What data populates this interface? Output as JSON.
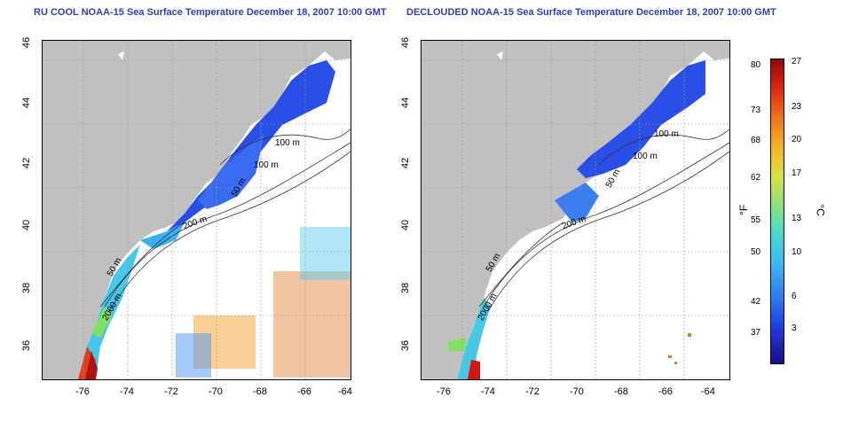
{
  "left_title": "RU COOL NOAA-15 Sea Surface Temperature December 18, 2007 10:00 GMT",
  "right_title": "DECLOUDED NOAA-15 Sea Surface Temperature December 18, 2007 10:00 GMT",
  "x_ticks": [
    "-76",
    "-74",
    "-72",
    "-70",
    "-68",
    "-66",
    "-64"
  ],
  "y_ticks": [
    "36",
    "38",
    "40",
    "42",
    "44",
    "46"
  ],
  "contour_labels": {
    "c100a": "100 m",
    "c100b": "100 m",
    "c50": "50 m",
    "c200": "200 m",
    "c50b": "50 m",
    "c2000": "2000 m"
  },
  "colorbar": {
    "fahrenheit_unit": "°F",
    "celsius_unit": "°C",
    "fahrenheit": [
      "80",
      "73",
      "68",
      "62",
      "55",
      "50",
      "42",
      "37"
    ],
    "celsius": [
      "27",
      "23",
      "20",
      "17",
      "13",
      "10",
      "6",
      "3"
    ]
  },
  "colors": {
    "land": "#c0c0c0",
    "cold": "#2050e0",
    "title": "#2a3fb0"
  }
}
